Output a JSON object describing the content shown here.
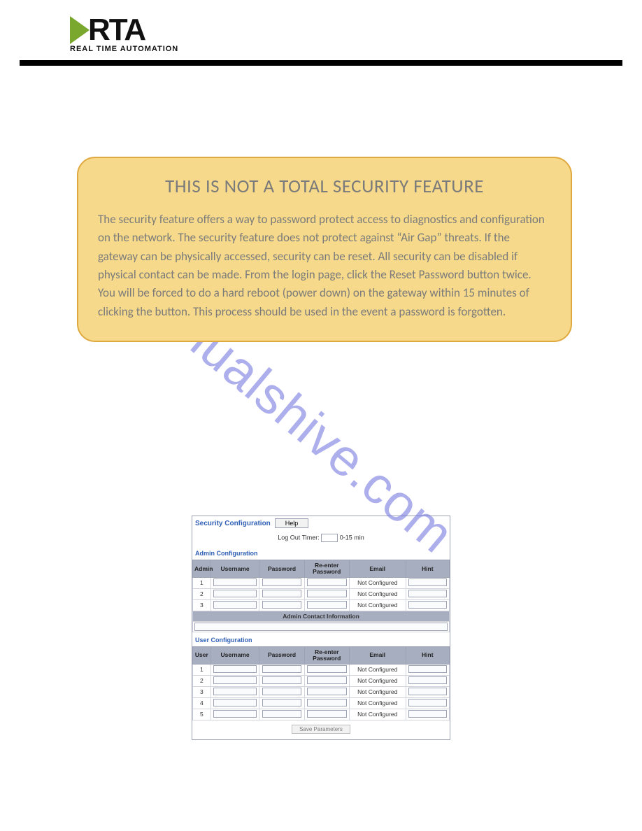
{
  "logo": {
    "main": "RTA",
    "sub": "REAL TIME AUTOMATION",
    "arrow_color": "#7aa82f",
    "text_color": "#111111"
  },
  "callout": {
    "bg_color": "#f6d98a",
    "border_color": "#e0a93f",
    "title": "THIS IS NOT A TOTAL SECURITY FEATURE",
    "title_color": "#7b7b7b",
    "body": "The security feature offers a way to password protect access to diagnostics and configuration on the network. The security feature does not protect against “Air Gap” threats. If the gateway can be physically accessed, security can be reset. All security can be disabled if physical contact can be made. From the login page, click the Reset Password button twice. You will be forced to do a hard reboot (power down) on the gateway within 15 minutes of clicking the button. This process should be used in the event a password is forgotten.",
    "body_color": "#7b7b7b"
  },
  "watermark": {
    "text": "manualshive.com",
    "color": "rgba(106,107,220,0.55)"
  },
  "screenshot": {
    "title": "Security Configuration",
    "help_label": "Help",
    "logout": {
      "label": "Log Out Timer:",
      "value": "",
      "suffix": "0-15 min"
    },
    "admin_section": "Admin Configuration",
    "user_section": "User Configuration",
    "headers": {
      "admin_idx": "Admin",
      "user_idx": "User",
      "username": "Username",
      "password": "Password",
      "reenter": "Re-enter Password",
      "email": "Email",
      "hint": "Hint"
    },
    "not_configured": "Not Configured",
    "admin_rows": [
      {
        "n": "1",
        "email": "Not Configured"
      },
      {
        "n": "2",
        "email": "Not Configured"
      },
      {
        "n": "3",
        "email": "Not Configured"
      }
    ],
    "contact_header": "Admin Contact Information",
    "user_rows": [
      {
        "n": "1",
        "email": "Not Configured"
      },
      {
        "n": "2",
        "email": "Not Configured"
      },
      {
        "n": "3",
        "email": "Not Configured"
      },
      {
        "n": "4",
        "email": "Not Configured"
      },
      {
        "n": "5",
        "email": "Not Configured"
      }
    ],
    "save_label": "Save Parameters",
    "colors": {
      "header_bg": "#a7aec0",
      "border": "#9ca2b3",
      "link": "#2f5fb5"
    }
  }
}
